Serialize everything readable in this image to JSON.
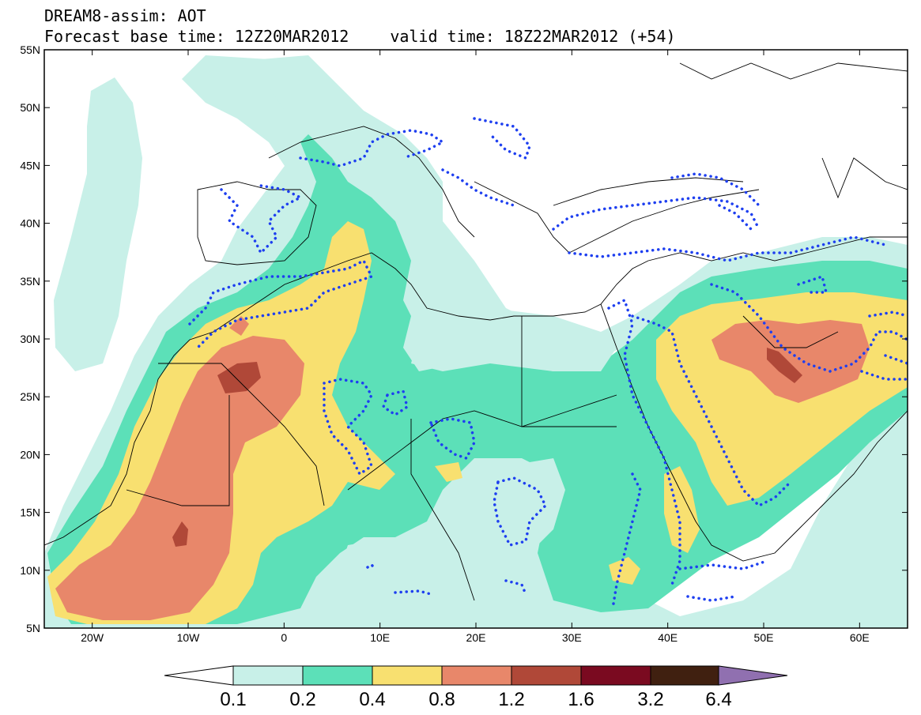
{
  "header": {
    "line1": "DREAM8-assim: AOT",
    "base_time": "Forecast base time: 12Z20MAR2012",
    "valid_time": "valid time: 18Z22MAR2012 (+54)"
  },
  "map": {
    "lat_labels": [
      "55N",
      "50N",
      "45N",
      "40N",
      "35N",
      "30N",
      "25N",
      "20N",
      "15N",
      "10N",
      "5N"
    ],
    "lon_labels": [
      "20W",
      "10W",
      "0",
      "10E",
      "20E",
      "30E",
      "40E",
      "50E",
      "60E"
    ],
    "fields": {
      "aot_0_1": {
        "color": "#c8f0e8",
        "features": "broad haze from Atlantic across Mediterranean, Sahel and Arabian Sea"
      },
      "aot_0_2": {
        "color": "#5ce0b8",
        "features": "Sahara, Eastern Sahara, Red Sea, Arabian Peninsula"
      },
      "aot_0_4": {
        "color": "#f8e070",
        "features": "western Sahara, Mauritania, Arabian Peninsula, Ethiopia"
      },
      "aot_0_8": {
        "color": "#e8876a",
        "features": "Western Sahara to Senegal, Persian Gulf"
      },
      "aot_1_2": {
        "color": "#b04838",
        "features": "Algeria/Mauritania core, Guinea, southern Iraq"
      }
    },
    "contour_style": "dotted blue contour lines"
  },
  "colorbar": {
    "labels": [
      "0.1",
      "0.2",
      "0.4",
      "0.8",
      "1.2",
      "1.6",
      "3.2",
      "6.4"
    ],
    "colors": [
      "#ffffff",
      "#c8f0e8",
      "#5ce0b8",
      "#f8e070",
      "#e8876a",
      "#b04838",
      "#7a0a20",
      "#402010",
      "#9070b0"
    ]
  }
}
